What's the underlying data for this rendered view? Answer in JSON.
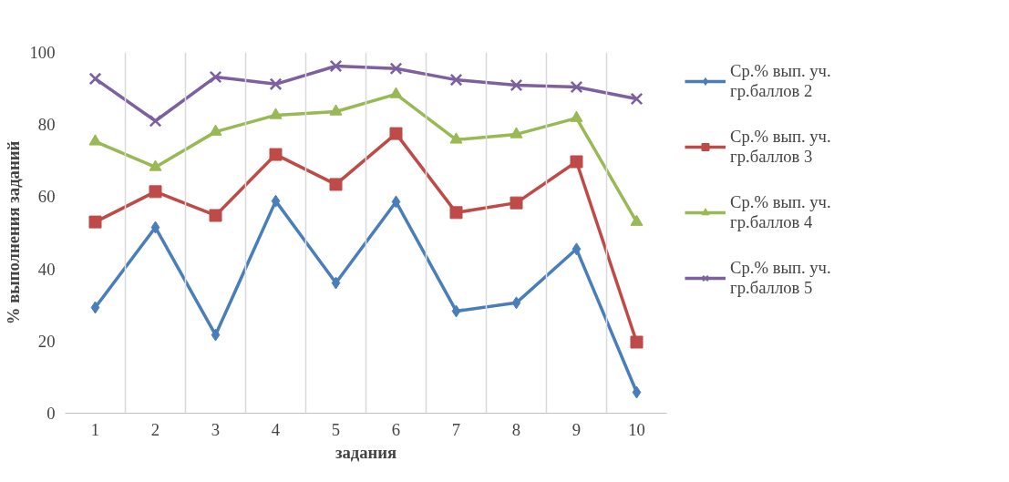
{
  "chart_data": {
    "type": "line",
    "xlabel": "задания",
    "ylabel": "% выполнения заданий",
    "categories": [
      "1",
      "2",
      "3",
      "4",
      "5",
      "6",
      "7",
      "8",
      "9",
      "10"
    ],
    "ylim": [
      0,
      100
    ],
    "yticks": [
      0,
      20,
      40,
      60,
      80,
      100
    ],
    "grid": "x",
    "legend": "right",
    "line_style": "solid",
    "series": [
      {
        "name": "Ср.% вып. уч.\nгр.баллов 2",
        "color": "#4a7ebb",
        "marker": "diamond",
        "values": [
          29.3,
          51.5,
          21.7,
          58.8,
          36.1,
          58.6,
          28.3,
          30.6,
          45.5,
          5.8
        ]
      },
      {
        "name": "Ср.% вып. уч.\nгр.баллов 3",
        "color": "#be4b48",
        "marker": "square",
        "values": [
          53,
          61.4,
          54.8,
          71.7,
          63.4,
          77.5,
          55.6,
          58.3,
          69.7,
          19.7
        ]
      },
      {
        "name": "Ср.% вып. уч.\nгр.баллов 4",
        "color": "#98b954",
        "marker": "triangle",
        "values": [
          75.3,
          68.2,
          78,
          82.6,
          83.6,
          88.4,
          75.8,
          77.3,
          81.8,
          53
        ]
      },
      {
        "name": "Ср.% вып. уч.\nгр.баллов 5",
        "color": "#7d60a0",
        "marker": "x",
        "values": [
          92.7,
          81,
          93.2,
          91.2,
          96.2,
          95.5,
          92.4,
          90.9,
          90.4,
          87.1
        ]
      }
    ]
  }
}
